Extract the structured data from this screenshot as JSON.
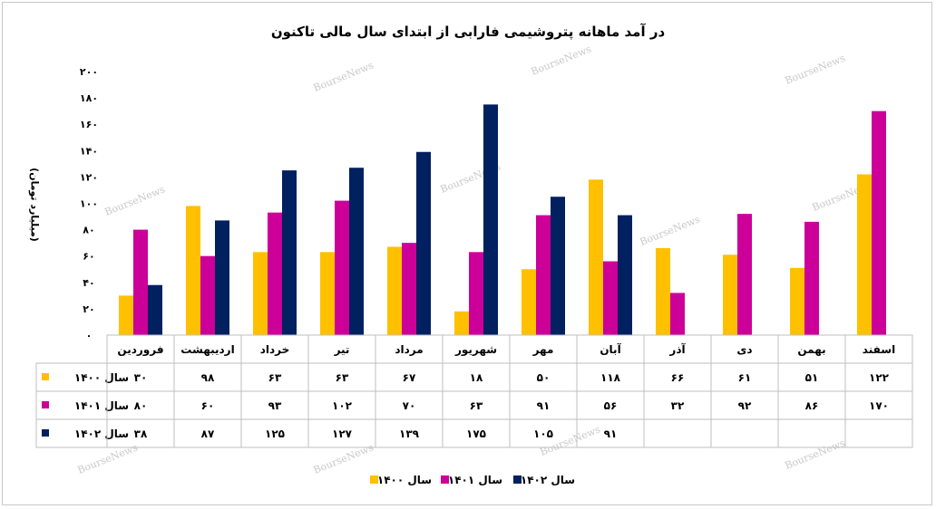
{
  "chart_data": {
    "type": "bar",
    "title": "در آمد ماهانه پتروشیمی فارابی از ابتدای سال مالی تاکنون",
    "ylabel": "(میلیارد تومان)",
    "ylim": [
      0,
      200
    ],
    "yticks": [
      0,
      20,
      40,
      60,
      80,
      100,
      120,
      140,
      160,
      180,
      200
    ],
    "ytick_labels": [
      "۰",
      "۲۰",
      "۴۰",
      "۶۰",
      "۸۰",
      "۱۰۰",
      "۱۲۰",
      "۱۴۰",
      "۱۶۰",
      "۱۸۰",
      "۲۰۰"
    ],
    "categories": [
      "فروردین",
      "اردیبهشت",
      "خرداد",
      "تیر",
      "مرداد",
      "شهریور",
      "مهر",
      "آبان",
      "آذر",
      "دی",
      "بهمن",
      "اسفند"
    ],
    "series": [
      {
        "name": "سال ۱۴۰۰",
        "color": "#FFC000",
        "values": [
          30,
          98,
          63,
          63,
          67,
          18,
          50,
          118,
          66,
          61,
          51,
          122
        ],
        "labels": [
          "۳۰",
          "۹۸",
          "۶۳",
          "۶۳",
          "۶۷",
          "۱۸",
          "۵۰",
          "۱۱۸",
          "۶۶",
          "۶۱",
          "۵۱",
          "۱۲۲"
        ]
      },
      {
        "name": "سال ۱۴۰۱",
        "color": "#CC0099",
        "values": [
          80,
          60,
          93,
          102,
          70,
          63,
          91,
          56,
          32,
          92,
          86,
          170
        ],
        "labels": [
          "۸۰",
          "۶۰",
          "۹۳",
          "۱۰۲",
          "۷۰",
          "۶۳",
          "۹۱",
          "۵۶",
          "۳۲",
          "۹۲",
          "۸۶",
          "۱۷۰"
        ]
      },
      {
        "name": "سال ۱۴۰۲",
        "color": "#002060",
        "values": [
          38,
          87,
          125,
          127,
          139,
          175,
          105,
          91,
          null,
          null,
          null,
          null
        ],
        "labels": [
          "۳۸",
          "۸۷",
          "۱۲۵",
          "۱۲۷",
          "۱۳۹",
          "۱۷۵",
          "۱۰۵",
          "۹۱",
          "",
          "",
          "",
          ""
        ]
      }
    ],
    "legend_position": "bottom",
    "grid": false,
    "watermark": "BourseNews"
  }
}
